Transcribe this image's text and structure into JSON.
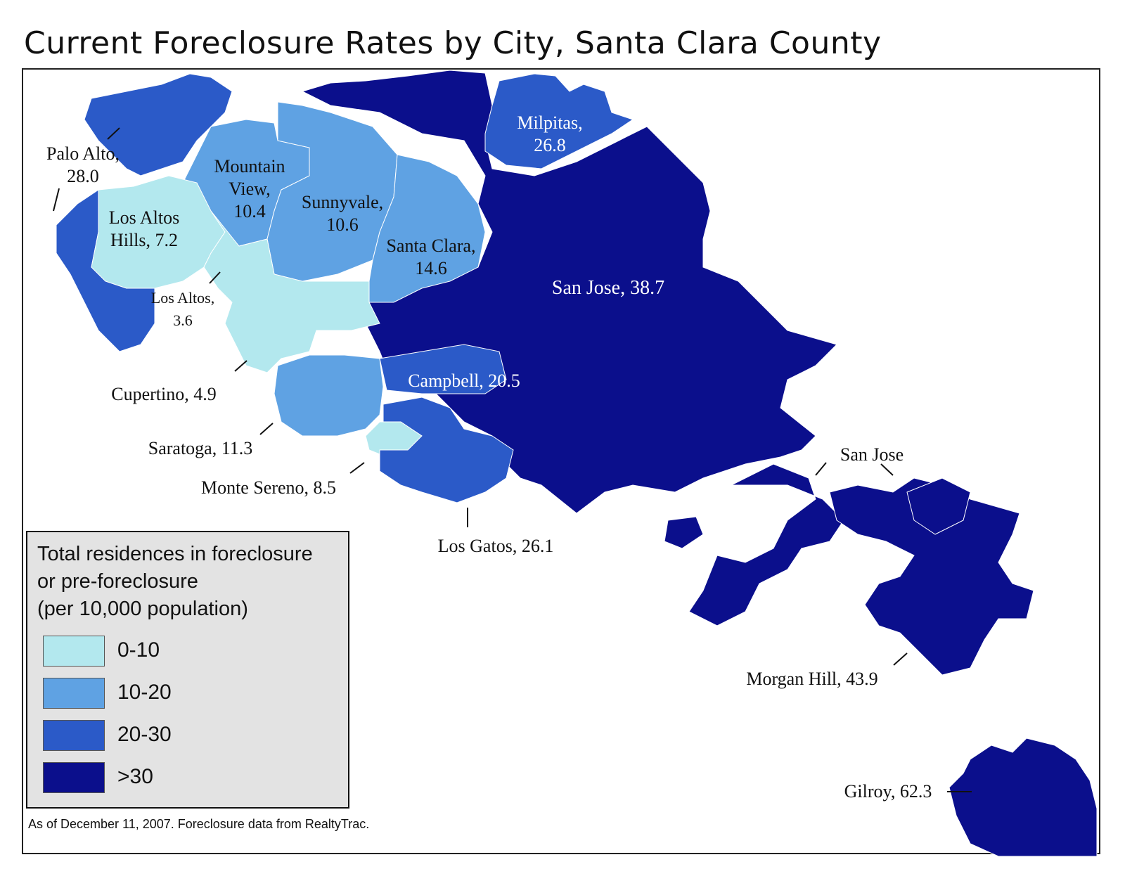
{
  "title": "Current Foreclosure Rates by City, Santa Clara County",
  "colors": {
    "c0_10": "#b3e8ee",
    "c10_20": "#5fa2e3",
    "c20_30": "#2b5ac8",
    "c30_plus": "#0b0f8c",
    "legend_bg": "#e3e3e3"
  },
  "cities": [
    {
      "id": "palo-alto",
      "name": "Palo Alto",
      "rate": 28.0,
      "label": [
        "Palo Alto,",
        "28.0"
      ]
    },
    {
      "id": "mountain-view",
      "name": "Mountain View",
      "rate": 10.4,
      "label": [
        "Mountain",
        "View,",
        "10.4"
      ]
    },
    {
      "id": "sunnyvale",
      "name": "Sunnyvale",
      "rate": 10.6,
      "label": [
        "Sunnyvale,",
        "10.6"
      ]
    },
    {
      "id": "santa-clara",
      "name": "Santa Clara",
      "rate": 14.6,
      "label": [
        "Santa Clara,",
        "14.6"
      ]
    },
    {
      "id": "milpitas",
      "name": "Milpitas",
      "rate": 26.8,
      "label": [
        "Milpitas,",
        "26.8"
      ]
    },
    {
      "id": "los-altos-hills",
      "name": "Los Altos Hills",
      "rate": 7.2,
      "label": [
        "Los Altos",
        "Hills, 7.2"
      ]
    },
    {
      "id": "los-altos",
      "name": "Los Altos",
      "rate": 3.6,
      "label": [
        "Los Altos,",
        "3.6"
      ]
    },
    {
      "id": "san-jose",
      "name": "San Jose",
      "rate": 38.7,
      "label": [
        "San Jose, 38.7"
      ]
    },
    {
      "id": "campbell",
      "name": "Campbell",
      "rate": 20.5,
      "label": [
        "Campbell, 20.5"
      ]
    },
    {
      "id": "cupertino",
      "name": "Cupertino",
      "rate": 4.9,
      "label": [
        "Cupertino, 4.9"
      ]
    },
    {
      "id": "saratoga",
      "name": "Saratoga",
      "rate": 11.3,
      "label": [
        "Saratoga, 11.3"
      ]
    },
    {
      "id": "monte-sereno",
      "name": "Monte Sereno",
      "rate": 8.5,
      "label": [
        "Monte Sereno, 8.5"
      ]
    },
    {
      "id": "los-gatos",
      "name": "Los Gatos",
      "rate": 26.1,
      "label": [
        "Los Gatos, 26.1"
      ]
    },
    {
      "id": "san-jose-south",
      "name": "San Jose",
      "label": [
        "San Jose"
      ]
    },
    {
      "id": "morgan-hill",
      "name": "Morgan Hill",
      "rate": 43.9,
      "label": [
        "Morgan Hill, 43.9"
      ]
    },
    {
      "id": "gilroy",
      "name": "Gilroy",
      "rate": 62.3,
      "label": [
        "Gilroy, 62.3"
      ]
    }
  ],
  "legend": {
    "title_lines": [
      "Total residences in foreclosure",
      "or pre-foreclosure",
      "(per 10,000 population)"
    ],
    "items": [
      {
        "range": "0-10",
        "color": "#b3e8ee"
      },
      {
        "range": "10-20",
        "color": "#5fa2e3"
      },
      {
        "range": "20-30",
        "color": "#2b5ac8"
      },
      {
        "range": ">30",
        "color": "#0b0f8c"
      }
    ]
  },
  "source_note": "As of December 11, 2007. Foreclosure data from RealtyTrac."
}
